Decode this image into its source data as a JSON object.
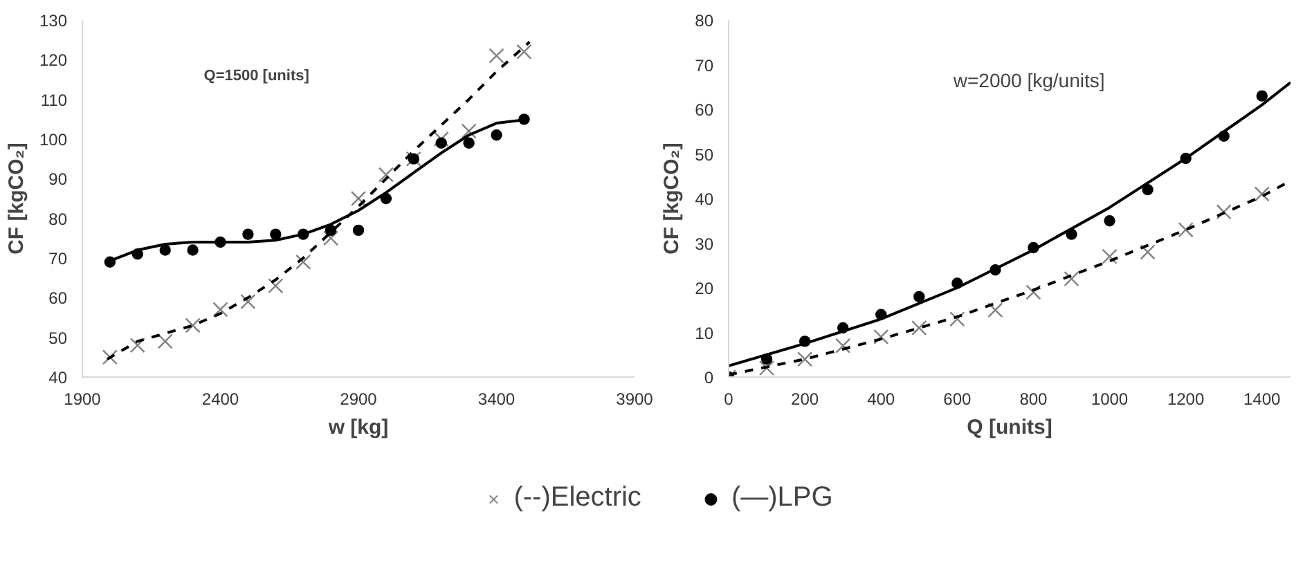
{
  "chart_data": [
    {
      "type": "scatter",
      "xlabel": "w [kg]",
      "ylabel": "CF [kgCO₂]",
      "annotations": [
        "Q=1500 [units]"
      ],
      "xlim": [
        1900,
        3900
      ],
      "xticks": [
        1900,
        2400,
        2900,
        3400,
        3900
      ],
      "ylim": [
        40,
        130
      ],
      "yticks": [
        40,
        50,
        60,
        70,
        80,
        90,
        100,
        110,
        120,
        130
      ],
      "grid": false,
      "legend": "bottom",
      "series": [
        {
          "name": "(--)Electric",
          "marker": "cross",
          "color": "#808080",
          "x": [
            2000,
            2100,
            2200,
            2300,
            2400,
            2500,
            2600,
            2700,
            2800,
            2900,
            3000,
            3100,
            3200,
            3300,
            3400,
            3500
          ],
          "values": [
            45,
            48,
            49,
            53,
            57,
            59,
            63,
            69,
            75,
            85,
            91,
            95,
            100,
            102,
            121,
            122
          ]
        },
        {
          "name": "(—)LPG",
          "marker": "circle",
          "color": "#000000",
          "x": [
            2000,
            2100,
            2200,
            2300,
            2400,
            2500,
            2600,
            2700,
            2800,
            2900,
            3000,
            3100,
            3200,
            3300,
            3400,
            3500
          ],
          "values": [
            69,
            71,
            72,
            72,
            74,
            76,
            76,
            76,
            77,
            77,
            85,
            95,
            99,
            99,
            101,
            105
          ]
        },
        {
          "type": "line",
          "line_style": "dashed",
          "color": "#000000",
          "x": [
            1990,
            2100,
            2200,
            2300,
            2400,
            2500,
            2600,
            2700,
            2800,
            2900,
            3000,
            3100,
            3200,
            3300,
            3400,
            3520
          ],
          "values": [
            44.5,
            49,
            51,
            53,
            56,
            60,
            64.5,
            70,
            76.5,
            83,
            90,
            97,
            103.5,
            110,
            117,
            124.5
          ]
        },
        {
          "type": "line",
          "line_style": "solid",
          "color": "#000000",
          "x": [
            1990,
            2100,
            2200,
            2300,
            2400,
            2500,
            2600,
            2700,
            2800,
            2900,
            3000,
            3100,
            3200,
            3300,
            3400,
            3520
          ],
          "values": [
            69,
            72,
            73.5,
            74,
            74,
            74,
            74.5,
            76,
            78.5,
            82,
            86.5,
            91.5,
            96.5,
            101,
            104,
            105
          ]
        }
      ]
    },
    {
      "type": "scatter",
      "xlabel": "Q [units]",
      "ylabel": "CF [kgCO₂]",
      "annotations": [
        "w=2000 [kg/units]"
      ],
      "xlim": [
        0,
        1475
      ],
      "xticks": [
        0,
        200,
        400,
        600,
        800,
        1000,
        1200,
        1400
      ],
      "ylim": [
        0,
        80
      ],
      "yticks": [
        0,
        10,
        20,
        30,
        40,
        50,
        60,
        70,
        80
      ],
      "grid": false,
      "series": [
        {
          "marker": "cross",
          "color": "#808080",
          "x": [
            0,
            100,
            200,
            300,
            400,
            500,
            600,
            700,
            800,
            900,
            1000,
            1100,
            1200,
            1300,
            1400
          ],
          "values": [
            0,
            2,
            4,
            7,
            9,
            11,
            13,
            15,
            19,
            22,
            27,
            28,
            33,
            37,
            41
          ]
        },
        {
          "marker": "circle",
          "color": "#000000",
          "x": [
            0,
            100,
            200,
            300,
            400,
            500,
            600,
            700,
            800,
            900,
            1000,
            1100,
            1200,
            1300,
            1400
          ],
          "values": [
            0,
            4,
            8,
            11,
            14,
            18,
            21,
            24,
            29,
            32,
            35,
            42,
            49,
            54,
            63
          ]
        },
        {
          "type": "line",
          "line_style": "dashed",
          "color": "#000000",
          "x": [
            0,
            200,
            400,
            600,
            800,
            1000,
            1200,
            1400,
            1475
          ],
          "values": [
            0.5,
            4,
            8.5,
            13.5,
            19.5,
            26,
            33,
            40.5,
            44
          ]
        },
        {
          "type": "line",
          "line_style": "solid",
          "color": "#000000",
          "x": [
            0,
            200,
            400,
            600,
            800,
            1000,
            1200,
            1400,
            1475
          ],
          "values": [
            2.5,
            7.5,
            13,
            20,
            28.5,
            38,
            49,
            61,
            66
          ]
        }
      ]
    }
  ]
}
